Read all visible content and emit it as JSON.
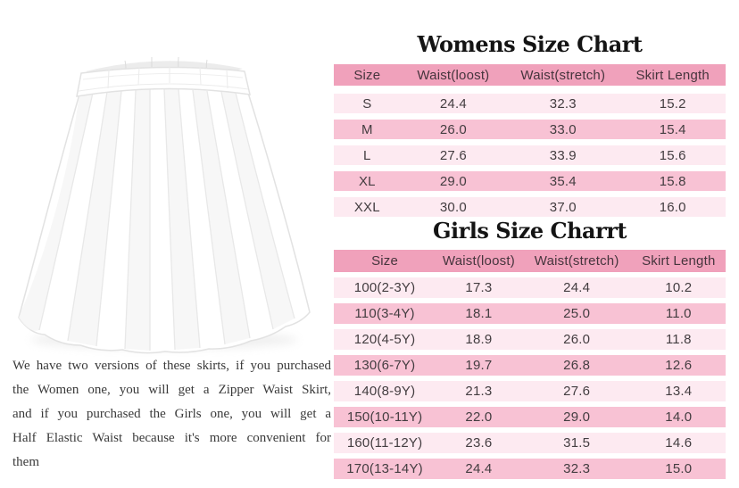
{
  "colors": {
    "header_bg": "#f0a1bb",
    "row_light": "#fdeaf1",
    "row_dark": "#f8c2d4",
    "header_text": "#46353d",
    "table_text": "#433d40",
    "title_text": "#141414",
    "description_text": "#3a3a3a"
  },
  "description": {
    "lines": [
      "We have two versions of these skirts, if you purchased",
      "the Women one, you will get a Zipper Waist Skirt,",
      "and if you purchased the Girls one, you will get a",
      "Half Elastic Waist because it's more convenient for",
      "them"
    ]
  },
  "womens_chart": {
    "title": "Womens Size Chart",
    "headers": [
      "Size",
      "Waist(loost)",
      "Waist(stretch)",
      "Skirt Length"
    ],
    "rows": [
      [
        "S",
        "24.4",
        "32.3",
        "15.2"
      ],
      [
        "M",
        "26.0",
        "33.0",
        "15.4"
      ],
      [
        "L",
        "27.6",
        "33.9",
        "15.6"
      ],
      [
        "XL",
        "29.0",
        "35.4",
        "15.8"
      ],
      [
        "XXL",
        "30.0",
        "37.0",
        "16.0"
      ]
    ]
  },
  "girls_chart": {
    "title": "Girls Size Charrt",
    "headers": [
      "Size",
      "Waist(loost)",
      "Waist(stretch)",
      "Skirt Length"
    ],
    "rows": [
      [
        "100(2-3Y)",
        "17.3",
        "24.4",
        "10.2"
      ],
      [
        "110(3-4Y)",
        "18.1",
        "25.0",
        "11.0"
      ],
      [
        "120(4-5Y)",
        "18.9",
        "26.0",
        "11.8"
      ],
      [
        "130(6-7Y)",
        "19.7",
        "26.8",
        "12.6"
      ],
      [
        "140(8-9Y)",
        "21.3",
        "27.6",
        "13.4"
      ],
      [
        "150(10-11Y)",
        "22.0",
        "29.0",
        "14.0"
      ],
      [
        "160(11-12Y)",
        "23.6",
        "31.5",
        "14.6"
      ],
      [
        "170(13-14Y)",
        "24.4",
        "32.3",
        "15.0"
      ]
    ]
  }
}
